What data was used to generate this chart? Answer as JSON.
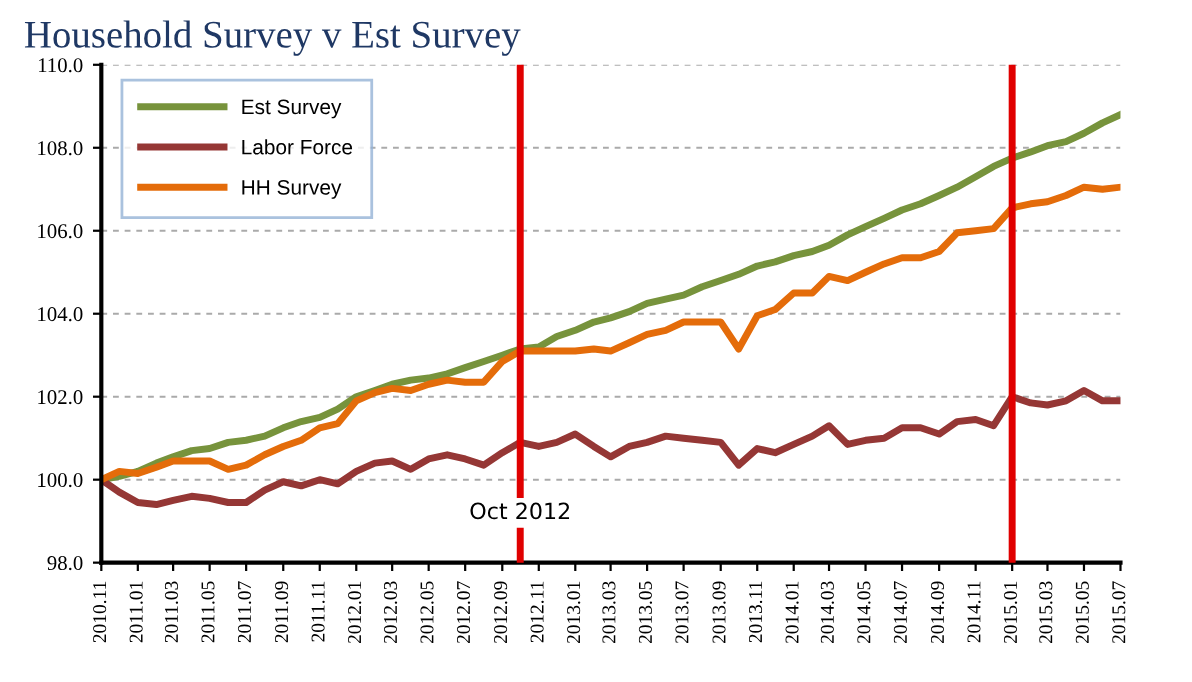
{
  "chart_data": {
    "type": "line",
    "title": "Household Survey v Est Survey",
    "x": [
      "2010-11",
      "2010-12",
      "2011-01",
      "2011-02",
      "2011-03",
      "2011-04",
      "2011-05",
      "2011-06",
      "2011-07",
      "2011-08",
      "2011-09",
      "2011-10",
      "2011-11",
      "2011-12",
      "2012-01",
      "2012-02",
      "2012-03",
      "2012-04",
      "2012-05",
      "2012-06",
      "2012-07",
      "2012-08",
      "2012-09",
      "2012-10",
      "2012-11",
      "2012-12",
      "2013-01",
      "2013-02",
      "2013-03",
      "2013-04",
      "2013-05",
      "2013-06",
      "2013-07",
      "2013-08",
      "2013-09",
      "2013-10",
      "2013-11",
      "2013-12",
      "2014-01",
      "2014-02",
      "2014-03",
      "2014-04",
      "2014-05",
      "2014-06",
      "2014-07",
      "2014-08",
      "2014-09",
      "2014-10",
      "2014-11",
      "2014-12",
      "2015-01",
      "2015-02",
      "2015-03",
      "2015-04",
      "2015-05",
      "2015-06",
      "2015-07"
    ],
    "series": [
      {
        "name": "Est Survey",
        "color": "#77933c",
        "values": [
          100.0,
          100.08,
          100.2,
          100.4,
          100.55,
          100.7,
          100.75,
          100.9,
          100.95,
          101.05,
          101.25,
          101.4,
          101.5,
          101.7,
          102.0,
          102.15,
          102.3,
          102.4,
          102.45,
          102.55,
          102.7,
          102.85,
          103.0,
          103.15,
          103.2,
          103.45,
          103.6,
          103.8,
          103.9,
          104.05,
          104.25,
          104.35,
          104.45,
          104.65,
          104.8,
          104.95,
          105.15,
          105.25,
          105.4,
          105.5,
          105.65,
          105.9,
          106.1,
          106.3,
          106.5,
          106.65,
          106.85,
          107.05,
          107.3,
          107.55,
          107.75,
          107.9,
          108.05,
          108.15,
          108.35,
          108.6,
          108.8
        ]
      },
      {
        "name": "Labor Force",
        "color": "#953735",
        "values": [
          100.0,
          99.7,
          99.45,
          99.4,
          99.5,
          99.6,
          99.55,
          99.45,
          99.45,
          99.75,
          99.95,
          99.85,
          100.0,
          99.9,
          100.2,
          100.4,
          100.45,
          100.25,
          100.5,
          100.6,
          100.5,
          100.35,
          100.65,
          100.9,
          100.8,
          100.9,
          101.1,
          100.8,
          100.55,
          100.8,
          100.9,
          101.05,
          101.0,
          100.95,
          100.9,
          100.35,
          100.75,
          100.65,
          100.85,
          101.05,
          101.3,
          100.85,
          100.95,
          101.0,
          101.25,
          101.25,
          101.1,
          101.4,
          101.45,
          101.3,
          102.0,
          101.85,
          101.8,
          101.9,
          102.15,
          101.9,
          101.9
        ]
      },
      {
        "name": "HH Survey",
        "color": "#e46c0a",
        "values": [
          100.0,
          100.2,
          100.15,
          100.3,
          100.45,
          100.45,
          100.45,
          100.25,
          100.35,
          100.6,
          100.8,
          100.95,
          101.25,
          101.35,
          101.9,
          102.1,
          102.2,
          102.15,
          102.3,
          102.4,
          102.35,
          102.35,
          102.85,
          103.1,
          103.1,
          103.1,
          103.1,
          103.15,
          103.1,
          103.3,
          103.5,
          103.6,
          103.8,
          103.8,
          103.8,
          103.15,
          103.95,
          104.1,
          104.5,
          104.5,
          104.9,
          104.8,
          105.0,
          105.2,
          105.35,
          105.35,
          105.5,
          105.95,
          106.0,
          106.05,
          106.55,
          106.65,
          106.7,
          106.85,
          107.05,
          107.0,
          107.05
        ]
      }
    ],
    "xlim": [
      "2010-11",
      "2015-07"
    ],
    "xticks": [
      {
        "value": "2010-11",
        "label": "2010.11"
      },
      {
        "value": "2011-01",
        "label": "2011.01"
      },
      {
        "value": "2011-03",
        "label": "2011.03"
      },
      {
        "value": "2011-05",
        "label": "2011.05"
      },
      {
        "value": "2011-07",
        "label": "2011.07"
      },
      {
        "value": "2011-09",
        "label": "2011.09"
      },
      {
        "value": "2011-11",
        "label": "2011.11"
      },
      {
        "value": "2012-01",
        "label": "2012.01"
      },
      {
        "value": "2012-03",
        "label": "2012.03"
      },
      {
        "value": "2012-05",
        "label": "2012.05"
      },
      {
        "value": "2012-07",
        "label": "2012.07"
      },
      {
        "value": "2012-09",
        "label": "2012.09"
      },
      {
        "value": "2012-11",
        "label": "2012.11"
      },
      {
        "value": "2013-01",
        "label": "2013.01"
      },
      {
        "value": "2013-03",
        "label": "2013.03"
      },
      {
        "value": "2013-05",
        "label": "2013.05"
      },
      {
        "value": "2013-07",
        "label": "2013.07"
      },
      {
        "value": "2013-09",
        "label": "2013.09"
      },
      {
        "value": "2013-11",
        "label": "2013.11"
      },
      {
        "value": "2014-01",
        "label": "2014.01"
      },
      {
        "value": "2014-03",
        "label": "2014.03"
      },
      {
        "value": "2014-05",
        "label": "2014.05"
      },
      {
        "value": "2014-07",
        "label": "2014.07"
      },
      {
        "value": "2014-09",
        "label": "2014.09"
      },
      {
        "value": "2014-11",
        "label": "2014.11"
      },
      {
        "value": "2015-01",
        "label": "2015.01"
      },
      {
        "value": "2015-03",
        "label": "2015.03"
      },
      {
        "value": "2015-05",
        "label": "2015.05"
      },
      {
        "value": "2015-07",
        "label": "2015.07"
      }
    ],
    "ylim": [
      98,
      110
    ],
    "yticks": [
      {
        "value": 98,
        "label": "98.0"
      },
      {
        "value": 100,
        "label": "100.0"
      },
      {
        "value": 102,
        "label": "102.0"
      },
      {
        "value": 104,
        "label": "104.0"
      },
      {
        "value": 106,
        "label": "106.0"
      },
      {
        "value": 108,
        "label": "108.0"
      },
      {
        "value": 110,
        "label": "110.0"
      }
    ],
    "ref_lines": [
      {
        "axis": "x",
        "value": "2012-10",
        "label": "Oct 2012",
        "color": "#e00000"
      },
      {
        "axis": "x",
        "value": "2015-01",
        "color": "#e00000"
      }
    ],
    "grid": "y",
    "legend": "top left",
    "marker": "none",
    "line_style": "solid"
  }
}
